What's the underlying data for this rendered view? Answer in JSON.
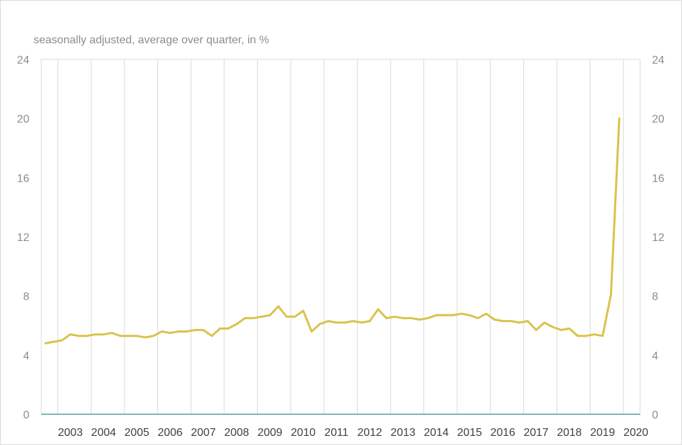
{
  "chart_data": {
    "type": "line",
    "subtitle": "seasonally adjusted, average over quarter, in %",
    "ylim": [
      0,
      24
    ],
    "y_ticks": [
      0,
      4,
      8,
      12,
      16,
      20,
      24
    ],
    "x_tick_labels": [
      "2003",
      "2004",
      "2005",
      "2006",
      "2007",
      "2008",
      "2009",
      "2010",
      "2011",
      "2012",
      "2013",
      "2014",
      "2015",
      "2016",
      "2017",
      "2018",
      "2019",
      "2020"
    ],
    "grid": "vertical",
    "x_start": "2002-Q3",
    "series": [
      {
        "color": "#d9c24b",
        "values": [
          4.8,
          4.9,
          5.0,
          5.4,
          5.3,
          5.3,
          5.4,
          5.4,
          5.5,
          5.3,
          5.3,
          5.3,
          5.2,
          5.3,
          5.6,
          5.5,
          5.6,
          5.6,
          5.7,
          5.7,
          5.3,
          5.8,
          5.8,
          6.1,
          6.5,
          6.5,
          6.6,
          6.7,
          7.3,
          6.6,
          6.6,
          7.0,
          5.6,
          6.1,
          6.3,
          6.2,
          6.2,
          6.3,
          6.2,
          6.3,
          7.1,
          6.5,
          6.6,
          6.5,
          6.5,
          6.4,
          6.5,
          6.7,
          6.7,
          6.7,
          6.8,
          6.7,
          6.5,
          6.8,
          6.4,
          6.3,
          6.3,
          6.2,
          6.3,
          5.7,
          6.2,
          5.9,
          5.7,
          5.8,
          5.3,
          5.3,
          5.4,
          5.3,
          8.1,
          20.0
        ]
      }
    ]
  }
}
